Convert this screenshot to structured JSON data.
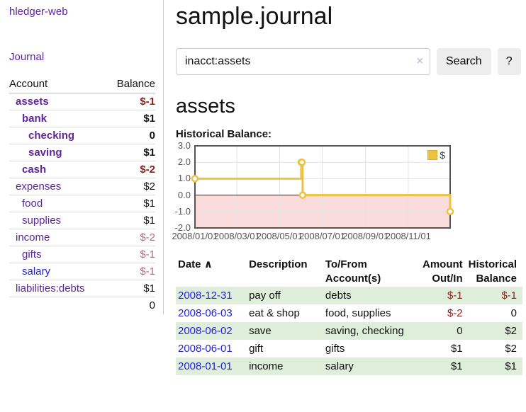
{
  "app": {
    "brand": "hledger-web"
  },
  "colors": {
    "link_purple": "#5f269b",
    "link_blue": "#2323d1",
    "negative_red": "#8f1d1d",
    "negative_muted": "#bb6a77",
    "row_stripe_green": "#dfeeda",
    "series_gold": "#EDC240"
  },
  "sidebar": {
    "journal_link": "Journal",
    "accounts_table": {
      "headers": {
        "account": "Account",
        "balance": "Balance"
      },
      "rows": [
        {
          "name": "assets",
          "indent": 1,
          "bold": true,
          "balance": "$-1",
          "balance_style": "negative"
        },
        {
          "name": "bank",
          "indent": 2,
          "bold": true,
          "balance": "$1",
          "balance_style": "normal"
        },
        {
          "name": "checking",
          "indent": 3,
          "bold": true,
          "balance": "0",
          "balance_style": "normal"
        },
        {
          "name": "saving",
          "indent": 3,
          "bold": true,
          "balance": "$1",
          "balance_style": "normal"
        },
        {
          "name": "cash",
          "indent": 2,
          "bold": true,
          "balance": "$-2",
          "balance_style": "negative"
        },
        {
          "name": "expenses",
          "indent": 1,
          "bold": false,
          "balance": "$2",
          "balance_style": "normal"
        },
        {
          "name": "food",
          "indent": 2,
          "bold": false,
          "balance": "$1",
          "balance_style": "normal"
        },
        {
          "name": "supplies",
          "indent": 2,
          "bold": false,
          "balance": "$1",
          "balance_style": "normal"
        },
        {
          "name": "income",
          "indent": 1,
          "bold": false,
          "balance": "$-2",
          "balance_style": "negative-muted"
        },
        {
          "name": "gifts",
          "indent": 2,
          "bold": false,
          "balance": "$-1",
          "balance_style": "negative-muted"
        },
        {
          "name": "salary",
          "indent": 2,
          "bold": false,
          "link_style": "unvisited",
          "balance": "$-1",
          "balance_style": "negative-muted"
        },
        {
          "name": "liabilities:debts",
          "indent": 1,
          "bold": false,
          "balance": "$1",
          "balance_style": "normal"
        }
      ],
      "total": "0"
    }
  },
  "main": {
    "title": "sample.journal",
    "search": {
      "value": "inacct:assets",
      "clear_icon": "×",
      "button": "Search",
      "help_button": "?"
    },
    "section_heading": "assets",
    "chart_label": "Historical Balance:"
  },
  "chart_data": {
    "type": "line",
    "style": "step",
    "title": "Historical Balance",
    "xlabel": "",
    "ylabel": "",
    "xlim": [
      "2008-01-01",
      "2008-12-31"
    ],
    "ylim": [
      -2,
      3
    ],
    "yticks": [
      3,
      2,
      1,
      0,
      -1,
      -2
    ],
    "xticks": [
      "2008/01/01",
      "2008/03/01",
      "2008/05/01",
      "2008/07/01",
      "2008/09/01",
      "2008/11/01"
    ],
    "grid": true,
    "legend_position": "top-right",
    "negative_region_fill": "#fbdcdc",
    "zero_line_color": "#8b0000",
    "series": [
      {
        "name": "$",
        "color": "#EDC240",
        "points": [
          [
            "2008-01-01",
            1
          ],
          [
            "2008-06-01",
            2
          ],
          [
            "2008-06-02",
            2
          ],
          [
            "2008-06-03",
            0
          ],
          [
            "2008-12-31",
            -1
          ]
        ]
      }
    ]
  },
  "register_table": {
    "headers": {
      "date": "Date",
      "sort_icon": "∧",
      "description": "Description",
      "accounts": "To/From Account(s)",
      "amount": "Amount Out/In",
      "balance": "Historical Balance"
    },
    "rows": [
      {
        "date": "2008-12-31",
        "description": "pay off",
        "accounts": "debts",
        "amount": "$-1",
        "amount_negative": true,
        "balance": "$-1",
        "balance_negative": true
      },
      {
        "date": "2008-06-03",
        "description": "eat & shop",
        "accounts": "food, supplies",
        "amount": "$-2",
        "amount_negative": true,
        "balance": "0",
        "balance_negative": false
      },
      {
        "date": "2008-06-02",
        "description": "save",
        "accounts": "saving, checking",
        "amount": "0",
        "amount_negative": false,
        "balance": "$2",
        "balance_negative": false
      },
      {
        "date": "2008-06-01",
        "description": "gift",
        "accounts": "gifts",
        "amount": "$1",
        "amount_negative": false,
        "balance": "$2",
        "balance_negative": false
      },
      {
        "date": "2008-01-01",
        "description": "income",
        "accounts": "salary",
        "amount": "$1",
        "amount_negative": false,
        "balance": "$1",
        "balance_negative": false
      }
    ]
  }
}
